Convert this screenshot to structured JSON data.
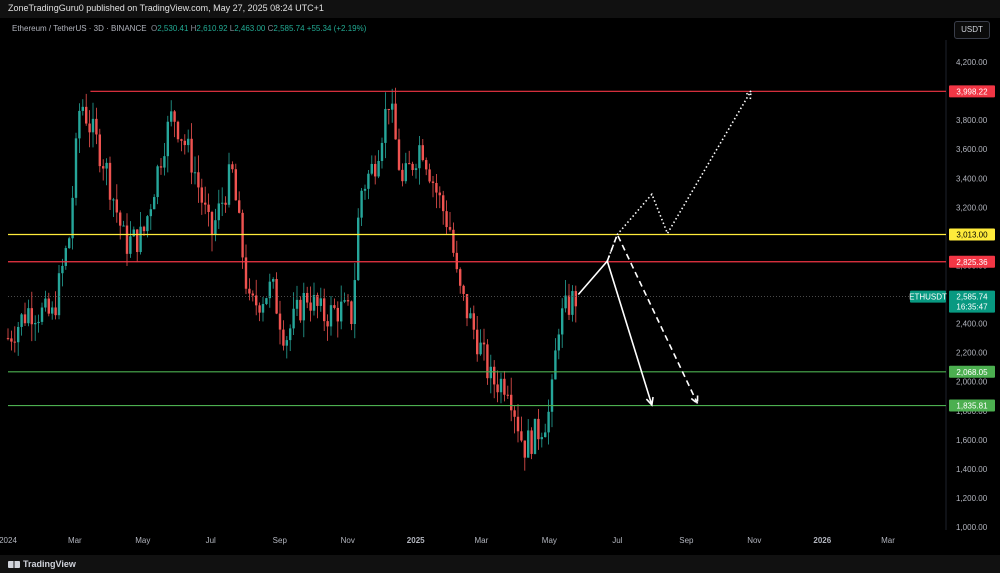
{
  "header": {
    "published": "ZoneTradingGuru0 published on TradingView.com, May 27, 2025 08:24 UTC+1",
    "symbol": "Ethereum / TetherUS · 3D · BINANCE",
    "o_label": "O",
    "o_value": "2,530.41",
    "h_label": "H",
    "h_value": "2,610.92",
    "l_label": "L",
    "l_value": "2,463.00",
    "c_label": "C",
    "c_value": "2,585.74",
    "change": "+55.34 (+2.19%)"
  },
  "currency_button": "USDT",
  "footer": {
    "brand": "TradingView"
  },
  "colors": {
    "up": "#26a69a",
    "down": "#ef5350",
    "red_line": "#f23645",
    "yellow_line": "#ffeb3b",
    "green_line": "#4caf50",
    "price_tag": "#089981"
  },
  "chart_data": {
    "type": "candlestick",
    "symbol": "ETHUSDT",
    "y_axis": {
      "ticks": [
        1000,
        1200,
        1400,
        1600,
        1800,
        2000,
        2200,
        2400,
        2600,
        2800,
        3000,
        3200,
        3400,
        3600,
        3800,
        4000,
        4200
      ],
      "tick_labels": [
        "1,000.00",
        "1,200.00",
        "1,400.00",
        "1,600.00",
        "1,800.00",
        "2,000.00",
        "2,200.00",
        "2,400.00",
        "2,600.00",
        "2,800.00",
        "3,000.00",
        "3,200.00",
        "3,400.00",
        "3,600.00",
        "3,800.00",
        "4,000.00",
        "4,200.00"
      ]
    },
    "x_axis": {
      "labels": [
        "2024",
        "Mar",
        "May",
        "Jul",
        "Sep",
        "Nov",
        "2025",
        "Mar",
        "May",
        "Jul",
        "Sep",
        "Nov",
        "2026",
        "Mar"
      ],
      "dates": [
        "2024-01-01",
        "2024-03-01",
        "2024-05-01",
        "2024-07-01",
        "2024-09-01",
        "2024-11-01",
        "2025-01-01",
        "2025-03-01",
        "2025-05-01",
        "2025-07-01",
        "2025-09-01",
        "2025-11-01",
        "2026-01-01",
        "2026-03-01"
      ]
    },
    "horizontal_levels": [
      {
        "price": 3998.22,
        "label": "3,998.22",
        "color": "#f23645",
        "start_date": "2024-03-15"
      },
      {
        "price": 3013.0,
        "label": "3,013.00",
        "color": "#ffeb3b",
        "start_date": "2024-01-01"
      },
      {
        "price": 2825.36,
        "label": "2,825.36",
        "color": "#f23645",
        "start_date": "2024-01-01"
      },
      {
        "price": 2068.05,
        "label": "2,068.05",
        "color": "#4caf50",
        "start_date": "2024-01-01"
      },
      {
        "price": 1835.81,
        "label": "1,835.81",
        "color": "#4caf50",
        "start_date": "2024-01-01"
      }
    ],
    "last_price": {
      "label": "ETHUSDT",
      "value": "2,585.74",
      "countdown": "16:35:47",
      "price": 2585.74
    },
    "projections": [
      {
        "style": "solid",
        "points": [
          [
            "2025-05-27",
            2600
          ],
          [
            "2025-06-22",
            2830
          ],
          [
            "2025-08-01",
            1840
          ]
        ],
        "arrow": true
      },
      {
        "style": "dashed",
        "points": [
          [
            "2025-06-22",
            2830
          ],
          [
            "2025-07-01",
            3013
          ],
          [
            "2025-09-11",
            1850
          ]
        ],
        "arrow": true
      },
      {
        "style": "dotted",
        "points": [
          [
            "2025-06-22",
            2830
          ],
          [
            "2025-07-01",
            3013
          ],
          [
            "2025-08-01",
            3290
          ],
          [
            "2025-08-15",
            3020
          ],
          [
            "2025-10-29",
            4000
          ]
        ],
        "arrow": true
      }
    ],
    "candles_anchor": [
      [
        "2024-01-01",
        2300
      ],
      [
        "2024-01-20",
        2500
      ],
      [
        "2024-02-10",
        2450
      ],
      [
        "2024-02-25",
        3000
      ],
      [
        "2024-03-06",
        3950
      ],
      [
        "2024-03-15",
        3750
      ],
      [
        "2024-03-28",
        3500
      ],
      [
        "2024-04-15",
        2950
      ],
      [
        "2024-05-01",
        3000
      ],
      [
        "2024-05-20",
        3650
      ],
      [
        "2024-05-28",
        3850
      ],
      [
        "2024-06-15",
        3500
      ],
      [
        "2024-07-01",
        3000
      ],
      [
        "2024-07-20",
        3450
      ],
      [
        "2024-08-05",
        2500
      ],
      [
        "2024-08-25",
        2650
      ],
      [
        "2024-09-06",
        2300
      ],
      [
        "2024-09-25",
        2600
      ],
      [
        "2024-10-10",
        2450
      ],
      [
        "2024-10-25",
        2500
      ],
      [
        "2024-11-05",
        2450
      ],
      [
        "2024-11-12",
        3300
      ],
      [
        "2024-11-25",
        3500
      ],
      [
        "2024-12-08",
        3950
      ],
      [
        "2024-12-20",
        3350
      ],
      [
        "2025-01-06",
        3650
      ],
      [
        "2025-01-20",
        3300
      ],
      [
        "2025-02-01",
        3050
      ],
      [
        "2025-02-08",
        2650
      ],
      [
        "2025-02-25",
        2300
      ],
      [
        "2025-03-10",
        2000
      ],
      [
        "2025-03-25",
        2000
      ],
      [
        "2025-04-08",
        1550
      ],
      [
        "2025-04-20",
        1650
      ],
      [
        "2025-05-02",
        1800
      ],
      [
        "2025-05-09",
        2400
      ],
      [
        "2025-05-20",
        2550
      ],
      [
        "2025-05-27",
        2585
      ]
    ]
  }
}
